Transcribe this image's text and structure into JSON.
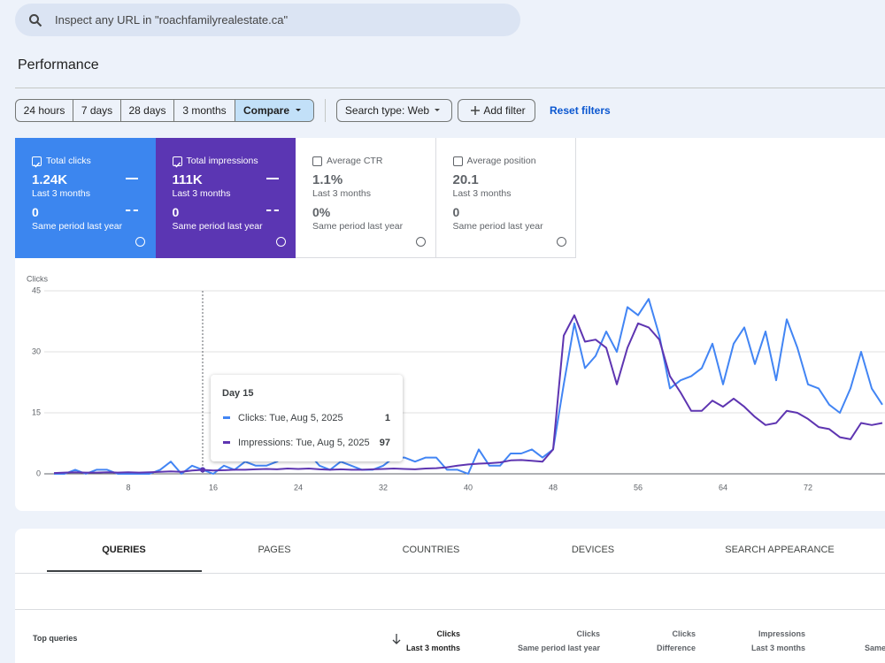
{
  "search": {
    "placeholder": "Inspect any URL in \"roachfamilyrealestate.ca\""
  },
  "heading": "Performance",
  "filters": {
    "ranges": [
      "24 hours",
      "7 days",
      "28 days",
      "3 months"
    ],
    "compare": "Compare",
    "search_type": "Search type: Web",
    "add_filter": "Add filter",
    "reset": "Reset filters"
  },
  "cards": [
    {
      "label": "Total clicks",
      "value": "1.24K",
      "period": "Last 3 months",
      "compare_value": "0",
      "compare_period": "Same period last year",
      "checked": true,
      "color": "#3c86ef"
    },
    {
      "label": "Total impressions",
      "value": "111K",
      "period": "Last 3 months",
      "compare_value": "0",
      "compare_period": "Same period last year",
      "checked": true,
      "color": "#5b36b3"
    },
    {
      "label": "Average CTR",
      "value": "1.1%",
      "period": "Last 3 months",
      "compare_value": "0%",
      "compare_period": "Same period last year",
      "checked": false
    },
    {
      "label": "Average position",
      "value": "20.1",
      "period": "Last 3 months",
      "compare_value": "0",
      "compare_period": "Same period last year",
      "checked": false
    }
  ],
  "chart_data": {
    "type": "line",
    "y_label": "Clicks",
    "x": [
      1,
      2,
      3,
      4,
      5,
      6,
      7,
      8,
      9,
      10,
      11,
      12,
      13,
      14,
      15,
      16,
      17,
      18,
      19,
      20,
      21,
      22,
      23,
      24,
      25,
      26,
      27,
      28,
      29,
      30,
      31,
      32,
      33,
      34,
      35,
      36,
      37,
      38,
      39,
      40,
      41,
      42,
      43,
      44,
      45,
      46,
      47,
      48,
      49,
      50,
      51,
      52,
      53,
      54,
      55,
      56,
      57,
      58,
      59,
      60,
      61,
      62,
      63,
      64,
      65,
      66,
      67,
      68,
      69,
      70,
      71,
      72,
      73,
      74,
      75,
      76,
      77,
      78,
      79
    ],
    "xlim": [
      1,
      79
    ],
    "xticks": [
      8,
      16,
      24,
      32,
      40,
      48,
      56,
      64,
      72
    ],
    "ylim": [
      0,
      45
    ],
    "yticks": [
      0,
      15,
      30,
      45
    ],
    "y2lim": [
      0,
      4500
    ],
    "grid": true,
    "series": [
      {
        "color": "#4285f4",
        "values": [
          0,
          0,
          1,
          0,
          1,
          1,
          0,
          0,
          0,
          0,
          1,
          3,
          0,
          2,
          1,
          0,
          2,
          1,
          3,
          2,
          2,
          3,
          5,
          4,
          5,
          2,
          1,
          3,
          2,
          1,
          1,
          2,
          4,
          4,
          3,
          4,
          4,
          1,
          1,
          0,
          6,
          2,
          2,
          5,
          5,
          6,
          4,
          6,
          22,
          37,
          26,
          29,
          35,
          30,
          41,
          39,
          43,
          34,
          21,
          23,
          24,
          26,
          32,
          22,
          32,
          36,
          27,
          35,
          23,
          38,
          31,
          22,
          21,
          17,
          15,
          21,
          30,
          21,
          17
        ]
      },
      {
        "color": "#5e35b1",
        "axis": "y2",
        "values": [
          20,
          30,
          40,
          30,
          30,
          40,
          30,
          40,
          30,
          40,
          50,
          60,
          50,
          80,
          97,
          80,
          90,
          100,
          100,
          110,
          120,
          110,
          130,
          120,
          130,
          110,
          100,
          110,
          100,
          100,
          110,
          120,
          130,
          120,
          110,
          130,
          140,
          160,
          200,
          230,
          250,
          260,
          280,
          330,
          340,
          320,
          300,
          600,
          3400,
          3900,
          3250,
          3300,
          3100,
          2200,
          3100,
          3700,
          3600,
          3300,
          2400,
          2000,
          1550,
          1550,
          1800,
          1650,
          1850,
          1650,
          1400,
          1200,
          1250,
          1550,
          1500,
          1350,
          1150,
          1100,
          900,
          850,
          1250,
          1200,
          1250
        ]
      }
    ],
    "tooltip": {
      "index": 14,
      "title": "Day 15",
      "labels": [
        "Clicks: Tue, Aug 5, 2025",
        "Impressions: Tue, Aug 5, 2025"
      ]
    }
  },
  "tabs": [
    "QUERIES",
    "PAGES",
    "COUNTRIES",
    "DEVICES",
    "SEARCH APPEARANCE"
  ],
  "table": {
    "first_column": "Top queries",
    "columns": [
      {
        "title": "Clicks",
        "subtitle": "Last 3 months"
      },
      {
        "title": "Clicks",
        "subtitle": "Same period last year"
      },
      {
        "title": "Clicks",
        "subtitle": "Difference"
      },
      {
        "title": "Impressions",
        "subtitle": "Last 3 months"
      },
      {
        "subtitle": "Same"
      }
    ]
  }
}
